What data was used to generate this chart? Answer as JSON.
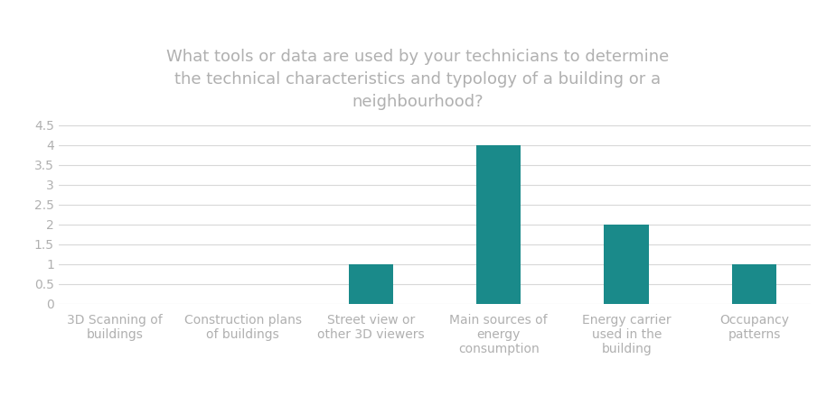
{
  "title": "What tools or data are used by your technicians to determine\nthe technical characteristics and typology of a building or a\nneighbourhood?",
  "categories": [
    "3D Scanning of\nbuildings",
    "Construction plans\nof buildings",
    "Street view or\nother 3D viewers",
    "Main sources of\nenergy\nconsumption",
    "Energy carrier\nused in the\nbuilding",
    "Occupancy\npatterns"
  ],
  "values": [
    0,
    0,
    1,
    4,
    2,
    1
  ],
  "bar_color": "#1a8a8a",
  "ylim": [
    0,
    4.8
  ],
  "yticks": [
    0,
    0.5,
    1,
    1.5,
    2,
    2.5,
    3,
    3.5,
    4,
    4.5
  ],
  "ytick_labels": [
    "0",
    "0.5",
    "1",
    "1.5",
    "2",
    "2.5",
    "3",
    "3.5",
    "4",
    "4.5"
  ],
  "background_color": "#ffffff",
  "title_color": "#b0b0b0",
  "title_fontsize": 13,
  "tick_label_fontsize": 10,
  "axis_tick_color": "#b0b0b0",
  "grid_color": "#d8d8d8",
  "bar_width": 0.35
}
